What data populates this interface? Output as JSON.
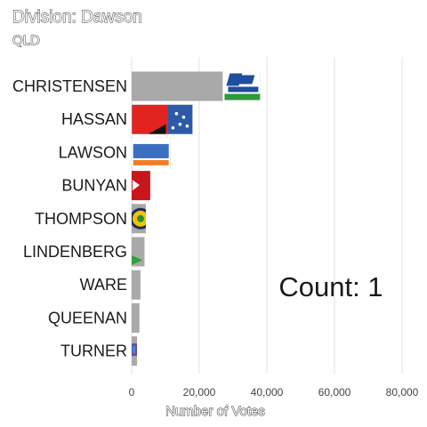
{
  "chart_data": {
    "type": "bar",
    "orientation": "horizontal",
    "title": "Division: Dawson",
    "subtitle": "QLD",
    "xlabel": "Number of Votes",
    "ylabel": "",
    "xlim": [
      0,
      80000
    ],
    "xticks": [
      0,
      20000,
      40000,
      60000,
      80000
    ],
    "xtick_labels": [
      "0",
      "20,000",
      "40,000",
      "60,000",
      "80,000"
    ],
    "grid": "vertical",
    "bar_color": "#a9a9a9",
    "categories": [
      "CHRISTENSEN",
      "HASSAN",
      "LAWSON",
      "BUNYAN",
      "THOMPSON",
      "LINDENBERG",
      "WARE",
      "QUEENAN",
      "TURNER"
    ],
    "values": [
      38000,
      18000,
      11500,
      5500,
      4200,
      3800,
      2600,
      2300,
      1600
    ],
    "party_logos": [
      "liberal-nationals-logo",
      "labor-logo",
      "one-nation-logo",
      "katters-party-logo",
      "sustainable-australia-logo",
      "greens-logo",
      "animal-justice-logo",
      "",
      "sex-party-logo"
    ],
    "annotation": "Count:  1"
  }
}
